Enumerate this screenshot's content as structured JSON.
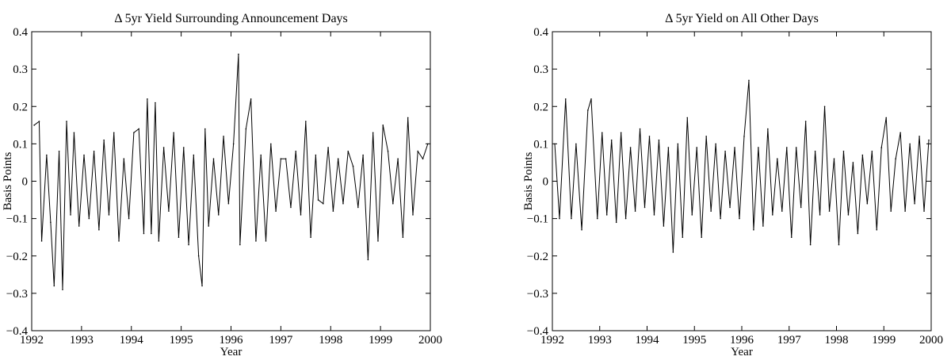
{
  "chart_data": [
    {
      "type": "line",
      "title": "Δ 5yr Yield Surrounding Announcement Days",
      "xlabel": "Year",
      "ylabel": "Basis Points",
      "xlim": [
        1992,
        2000
      ],
      "ylim": [
        -0.4,
        0.4
      ],
      "xticks": [
        "1992",
        "1993",
        "1994",
        "1995",
        "1996",
        "1997",
        "1998",
        "1999",
        "2000"
      ],
      "yticks": [
        "−0.4",
        "−0.3",
        "−0.2",
        "−0.1",
        "0",
        "0.1",
        "0.2",
        "0.3",
        "0.4"
      ],
      "grid": false,
      "legend": "none",
      "series_color": "#000000",
      "x": [
        1992.05,
        1992.15,
        1992.2,
        1992.3,
        1992.38,
        1992.45,
        1992.55,
        1992.62,
        1992.7,
        1992.78,
        1992.85,
        1992.95,
        1993.05,
        1993.15,
        1993.25,
        1993.35,
        1993.45,
        1993.55,
        1993.65,
        1993.75,
        1993.85,
        1993.95,
        1994.05,
        1994.15,
        1994.25,
        1994.32,
        1994.4,
        1994.48,
        1994.55,
        1994.65,
        1994.75,
        1994.85,
        1994.95,
        1995.05,
        1995.15,
        1995.25,
        1995.35,
        1995.42,
        1995.48,
        1995.55,
        1995.65,
        1995.75,
        1995.85,
        1995.95,
        1996.05,
        1996.15,
        1996.18,
        1996.3,
        1996.4,
        1996.5,
        1996.6,
        1996.7,
        1996.8,
        1996.9,
        1997.0,
        1997.1,
        1997.2,
        1997.3,
        1997.4,
        1997.5,
        1997.6,
        1997.7,
        1997.75,
        1997.85,
        1997.95,
        1998.05,
        1998.15,
        1998.25,
        1998.35,
        1998.45,
        1998.55,
        1998.65,
        1998.75,
        1998.85,
        1998.95,
        1999.05,
        1999.15,
        1999.25,
        1999.35,
        1999.45,
        1999.55,
        1999.65,
        1999.75,
        1999.85,
        1999.95
      ],
      "y": [
        0.15,
        0.16,
        -0.16,
        0.07,
        -0.11,
        -0.28,
        0.08,
        -0.29,
        0.16,
        -0.09,
        0.13,
        -0.12,
        0.07,
        -0.1,
        0.08,
        -0.13,
        0.11,
        -0.09,
        0.13,
        -0.16,
        0.06,
        -0.1,
        0.13,
        0.14,
        -0.14,
        0.22,
        -0.14,
        0.21,
        -0.16,
        0.09,
        -0.08,
        0.13,
        -0.15,
        0.09,
        -0.17,
        0.07,
        -0.2,
        -0.28,
        0.14,
        -0.12,
        0.06,
        -0.09,
        0.12,
        -0.06,
        0.1,
        0.34,
        -0.17,
        0.14,
        0.22,
        -0.16,
        0.07,
        -0.16,
        0.1,
        -0.08,
        0.06,
        0.06,
        -0.07,
        0.08,
        -0.09,
        0.16,
        -0.15,
        0.07,
        -0.05,
        -0.06,
        0.09,
        -0.08,
        0.06,
        -0.06,
        0.08,
        0.04,
        -0.07,
        0.07,
        -0.21,
        0.13,
        -0.16,
        0.15,
        0.08,
        -0.06,
        0.06,
        -0.15,
        0.17,
        -0.09,
        0.08,
        0.06,
        0.1
      ]
    },
    {
      "type": "line",
      "title": "Δ 5yr Yield on All Other Days",
      "xlabel": "Year",
      "ylabel": "Basis Points",
      "xlim": [
        1992,
        2000
      ],
      "ylim": [
        -0.4,
        0.4
      ],
      "xticks": [
        "1992",
        "1993",
        "1994",
        "1995",
        "1996",
        "1997",
        "1998",
        "1999",
        "2000"
      ],
      "yticks": [
        "−0.4",
        "−0.3",
        "−0.2",
        "−0.1",
        "0",
        "0.1",
        "0.2",
        "0.3",
        "0.4"
      ],
      "grid": false,
      "legend": "none",
      "series_color": "#000000",
      "x": [
        1992.05,
        1992.15,
        1992.28,
        1992.4,
        1992.5,
        1992.62,
        1992.75,
        1992.82,
        1992.95,
        1993.05,
        1993.15,
        1993.25,
        1993.35,
        1993.45,
        1993.55,
        1993.65,
        1993.75,
        1993.85,
        1993.95,
        1994.05,
        1994.15,
        1994.25,
        1994.35,
        1994.45,
        1994.55,
        1994.65,
        1994.75,
        1994.85,
        1994.95,
        1995.05,
        1995.15,
        1995.25,
        1995.35,
        1995.45,
        1995.55,
        1995.65,
        1995.75,
        1995.85,
        1995.95,
        1996.05,
        1996.15,
        1996.25,
        1996.35,
        1996.45,
        1996.55,
        1996.65,
        1996.75,
        1996.85,
        1996.95,
        1997.05,
        1997.15,
        1997.25,
        1997.35,
        1997.45,
        1997.55,
        1997.65,
        1997.75,
        1997.85,
        1997.95,
        1998.05,
        1998.15,
        1998.25,
        1998.35,
        1998.45,
        1998.55,
        1998.65,
        1998.75,
        1998.85,
        1998.95,
        1999.05,
        1999.15,
        1999.25,
        1999.35,
        1999.45,
        1999.55,
        1999.65,
        1999.75,
        1999.85,
        1999.95
      ],
      "y": [
        0.1,
        -0.1,
        0.22,
        -0.1,
        0.1,
        -0.13,
        0.19,
        0.22,
        -0.1,
        0.13,
        -0.09,
        0.11,
        -0.11,
        0.13,
        -0.1,
        0.09,
        -0.08,
        0.14,
        -0.07,
        0.12,
        -0.09,
        0.11,
        -0.12,
        0.09,
        -0.19,
        0.1,
        -0.15,
        0.17,
        -0.09,
        0.09,
        -0.15,
        0.12,
        -0.08,
        0.1,
        -0.1,
        0.08,
        -0.07,
        0.09,
        -0.1,
        0.12,
        0.27,
        -0.13,
        0.09,
        -0.12,
        0.14,
        -0.09,
        0.06,
        -0.08,
        0.09,
        -0.15,
        0.09,
        -0.07,
        0.16,
        -0.17,
        0.08,
        -0.09,
        0.2,
        -0.08,
        0.06,
        -0.17,
        0.08,
        -0.09,
        0.05,
        -0.14,
        0.07,
        -0.06,
        0.08,
        -0.13,
        0.09,
        0.17,
        -0.08,
        0.06,
        0.13,
        -0.08,
        0.1,
        -0.06,
        0.12,
        -0.08,
        0.11
      ]
    }
  ]
}
